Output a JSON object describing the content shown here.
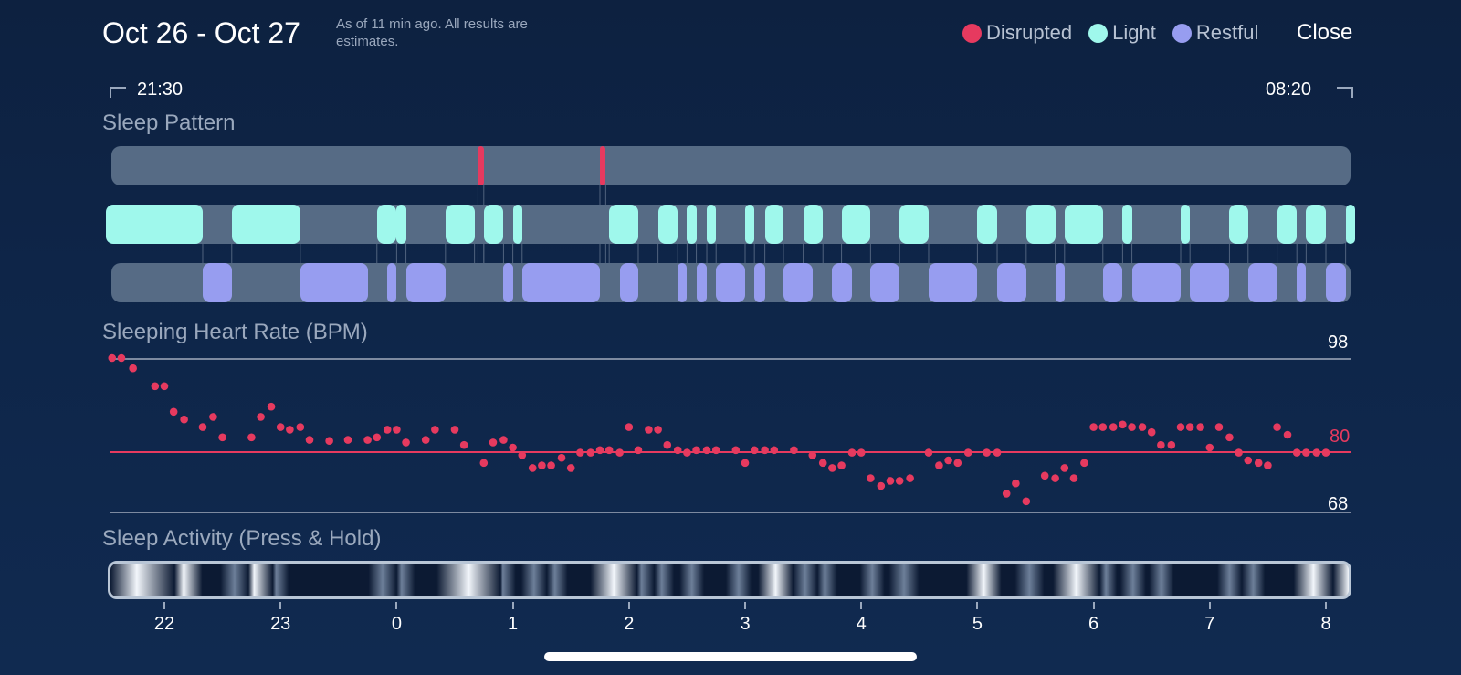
{
  "header": {
    "title": "Oct 26 - Oct 27",
    "subtitle": "As of 11 min ago. All results are estimates.",
    "close_label": "Close"
  },
  "legend": [
    {
      "label": "Disrupted",
      "color": "#e63a5f"
    },
    {
      "label": "Light",
      "color": "#9ff8ec"
    },
    {
      "label": "Restful",
      "color": "#979df0"
    }
  ],
  "range": {
    "start": "21:30",
    "end": "08:20"
  },
  "sleep_pattern": {
    "title": "Sleep Pattern",
    "colors": {
      "band": "#566b85",
      "disrupted": "#e63a5f",
      "light": "#9ff8ec",
      "restful": "#979df0"
    },
    "disrupted": [
      [
        0.7,
        0.75
      ],
      [
        1.75,
        1.8
      ]
    ],
    "light": [
      [
        21.5,
        22.33
      ],
      [
        22.58,
        23.17
      ],
      [
        23.83,
        24.0
      ],
      [
        24.0,
        24.08
      ],
      [
        24.42,
        24.67
      ],
      [
        24.75,
        24.92
      ],
      [
        25.0,
        25.08
      ],
      [
        25.83,
        26.08
      ],
      [
        26.25,
        26.42
      ],
      [
        26.5,
        26.58
      ],
      [
        26.67,
        26.75
      ],
      [
        27.0,
        27.08
      ],
      [
        27.17,
        27.33
      ],
      [
        27.5,
        27.67
      ],
      [
        27.83,
        28.08
      ],
      [
        28.33,
        28.58
      ],
      [
        29.0,
        29.17
      ],
      [
        29.42,
        29.67
      ],
      [
        29.75,
        30.08
      ],
      [
        30.25,
        30.33
      ],
      [
        30.75,
        30.83
      ],
      [
        31.17,
        31.33
      ],
      [
        31.58,
        31.75
      ],
      [
        31.83,
        32.0
      ],
      [
        32.17,
        32.25
      ]
    ],
    "restful": [
      [
        22.33,
        22.58
      ],
      [
        23.17,
        23.75
      ],
      [
        23.92,
        24.0
      ],
      [
        24.08,
        24.42
      ],
      [
        24.92,
        25.0
      ],
      [
        25.08,
        25.75
      ],
      [
        25.92,
        26.08
      ],
      [
        26.42,
        26.5
      ],
      [
        26.58,
        26.67
      ],
      [
        26.75,
        27.0
      ],
      [
        27.08,
        27.17
      ],
      [
        27.33,
        27.58
      ],
      [
        27.75,
        27.92
      ],
      [
        28.08,
        28.33
      ],
      [
        28.58,
        29.0
      ],
      [
        29.17,
        29.42
      ],
      [
        29.67,
        29.75
      ],
      [
        30.08,
        30.25
      ],
      [
        30.33,
        30.75
      ],
      [
        30.83,
        31.17
      ],
      [
        31.33,
        31.58
      ],
      [
        31.75,
        31.83
      ],
      [
        32.0,
        32.17
      ]
    ]
  },
  "heart_rate": {
    "title": "Sleeping Heart Rate (BPM)",
    "max_label": "98",
    "avg_label": "80",
    "min_label": "68",
    "colors": {
      "point": "#e63a5f",
      "ref": "#e63a5f",
      "grid": "#7d8aa0"
    }
  },
  "sleep_activity": {
    "title": "Sleep Activity (Press & Hold)",
    "bright_spans": [
      [
        21.5,
        21.98
      ],
      [
        22.07,
        22.22
      ],
      [
        22.55,
        22.62
      ],
      [
        22.68,
        22.83
      ],
      [
        22.92,
        22.97
      ],
      [
        23.83,
        23.9
      ],
      [
        24.0,
        24.06
      ],
      [
        24.42,
        24.8
      ],
      [
        24.88,
        24.93
      ],
      [
        25.15,
        25.2
      ],
      [
        25.33,
        25.38
      ],
      [
        25.75,
        25.98
      ],
      [
        26.08,
        26.13
      ],
      [
        26.26,
        26.3
      ],
      [
        26.52,
        26.56
      ],
      [
        26.92,
        26.97
      ],
      [
        27.2,
        27.33
      ],
      [
        27.5,
        27.54
      ],
      [
        27.67,
        27.71
      ],
      [
        28.08,
        28.12
      ],
      [
        28.33,
        28.42
      ],
      [
        29.0,
        29.13
      ],
      [
        29.42,
        29.5
      ],
      [
        29.75,
        29.98
      ],
      [
        30.11,
        30.13
      ],
      [
        30.33,
        30.38
      ],
      [
        30.58,
        30.62
      ],
      [
        31.17,
        31.21
      ],
      [
        31.38,
        31.41
      ],
      [
        31.83,
        32.0
      ]
    ]
  },
  "axis": {
    "ticks": [
      "22",
      "23",
      "0",
      "1",
      "2",
      "3",
      "4",
      "5",
      "6",
      "7",
      "8"
    ]
  },
  "chart_data": {
    "type": "scatter",
    "title": "Sleeping Heart Rate (BPM)",
    "xlabel": "",
    "ylabel": "BPM",
    "xlim": [
      "21:30",
      "08:20"
    ],
    "ylim": [
      68,
      98
    ],
    "x_ticks": [
      "22",
      "23",
      "0",
      "1",
      "2",
      "3",
      "4",
      "5",
      "6",
      "7",
      "8"
    ],
    "reference_line": 80,
    "series": [
      {
        "x": [
          21.55,
          21.63,
          21.73,
          21.92,
          22.0,
          22.08,
          22.17,
          22.33,
          22.42,
          22.5,
          22.75,
          22.83,
          22.92,
          23.0,
          23.08,
          23.17,
          23.25,
          23.42,
          23.58,
          23.75,
          23.83,
          23.92,
          24.0,
          24.08,
          24.25,
          24.33,
          24.5,
          24.58,
          24.75,
          24.83,
          24.92,
          25.0,
          25.08,
          25.17,
          25.25,
          25.33,
          25.42,
          25.5,
          25.58,
          25.67,
          25.75,
          25.83,
          25.92,
          26.0,
          26.08,
          26.17,
          26.25,
          26.33,
          26.42,
          26.5,
          26.58,
          26.67,
          26.75,
          26.92,
          27.0,
          27.08,
          27.17,
          27.25,
          27.42,
          27.58,
          27.67,
          27.75,
          27.83,
          27.92,
          28.0,
          28.08,
          28.17,
          28.25,
          28.33,
          28.42,
          28.58,
          28.67,
          28.75,
          28.83,
          28.92,
          29.08,
          29.17,
          29.25,
          29.33,
          29.42,
          29.58,
          29.67,
          29.75,
          29.83,
          29.92,
          30.0,
          30.08,
          30.17,
          30.25,
          30.33,
          30.42,
          30.5,
          30.58,
          30.67,
          30.75,
          30.83,
          30.92,
          31.0,
          31.08,
          31.17,
          31.25,
          31.33,
          31.42,
          31.5,
          31.58,
          31.67,
          31.75,
          31.83,
          31.92,
          32.0
        ]
      }
    ]
  }
}
